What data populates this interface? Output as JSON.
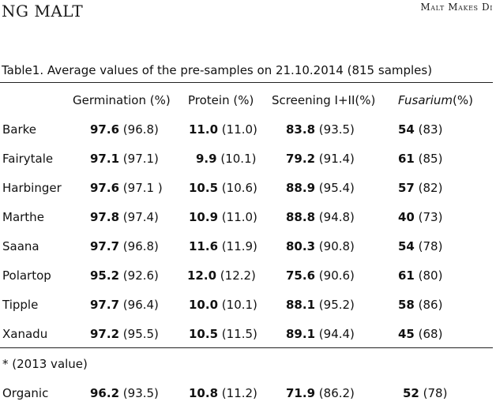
{
  "header": {
    "left_title": "NG MALT",
    "right_title": "Malt Makes Di"
  },
  "table": {
    "caption": "Table1. Average values of the pre-samples on 21.10.2014 (815 samples)",
    "columns": {
      "germination": "Germination (%)",
      "protein": "Protein (%)",
      "screening": "Screening I+II(%)",
      "fusarium_name": "Fusarium",
      "fusarium_unit": "(%)"
    },
    "rows": [
      {
        "variety": "Barke",
        "germ": "97.6",
        "germ_prev": "(96.8)",
        "prot": "11.0",
        "prot_prev": "(11.0)",
        "scr": "83.8",
        "scr_prev": "(93.5)",
        "fus": "54",
        "fus_prev": "(83)"
      },
      {
        "variety": "Fairytale",
        "germ": "97.1",
        "germ_prev": "(97.1)",
        "prot": "9.9",
        "prot_prev": "(10.1)",
        "scr": "79.2",
        "scr_prev": "(91.4)",
        "fus": "61",
        "fus_prev": "(85)"
      },
      {
        "variety": "Harbinger",
        "germ": "97.6",
        "germ_prev": "(97.1 )",
        "prot": "10.5",
        "prot_prev": "(10.6)",
        "scr": "88.9",
        "scr_prev": "(95.4)",
        "fus": "57",
        "fus_prev": "(82)"
      },
      {
        "variety": "Marthe",
        "germ": "97.8",
        "germ_prev": "(97.4)",
        "prot": "10.9",
        "prot_prev": "(11.0)",
        "scr": "88.8",
        "scr_prev": "(94.8)",
        "fus": "40",
        "fus_prev": "(73)"
      },
      {
        "variety": "Saana",
        "germ": "97.7",
        "germ_prev": "(96.8)",
        "prot": "11.6",
        "prot_prev": "(11.9)",
        "scr": "80.3",
        "scr_prev": "(90.8)",
        "fus": "54",
        "fus_prev": "(78)"
      },
      {
        "variety": "Polartop",
        "germ": "95.2",
        "germ_prev": "(92.6)",
        "prot": "12.0",
        "prot_prev": "(12.2)",
        "scr": "75.6",
        "scr_prev": "(90.6)",
        "fus": "61",
        "fus_prev": "(80)"
      },
      {
        "variety": "Tipple",
        "germ": "97.7",
        "germ_prev": "(96.4)",
        "prot": "10.0",
        "prot_prev": "(10.1)",
        "scr": "88.1",
        "scr_prev": "(95.2)",
        "fus": "58",
        "fus_prev": "(86)"
      },
      {
        "variety": "Xanadu",
        "germ": "97.2",
        "germ_prev": "(95.5)",
        "prot": "10.5",
        "prot_prev": "(11.5)",
        "scr": "89.1",
        "scr_prev": "(94.4)",
        "fus": "45",
        "fus_prev": "(68)"
      }
    ],
    "footnote": "* (2013 value)",
    "organic": {
      "variety": "Organic",
      "germ": "96.2",
      "germ_prev": "(93.5)",
      "prot": "10.8",
      "prot_prev": "(11.2)",
      "scr": "71.9",
      "scr_prev": "(86.2)",
      "fus": "52",
      "fus_prev": "(78)"
    }
  }
}
